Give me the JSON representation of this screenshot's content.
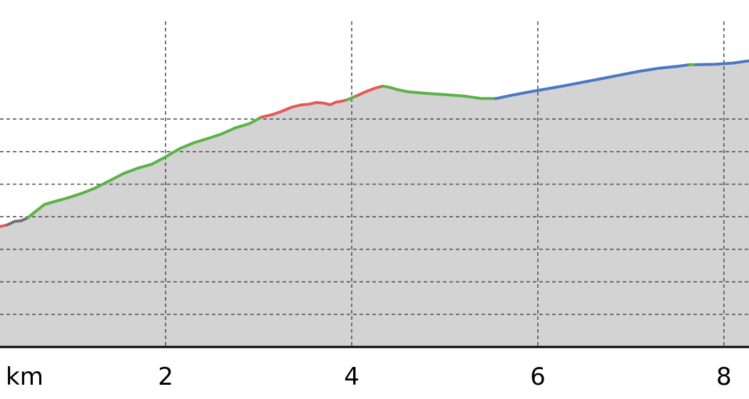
{
  "chart_data": {
    "type": "area",
    "title": "",
    "xlabel": "",
    "ylabel": "",
    "x_unit_label": "km",
    "x_ticks": [
      2,
      4,
      6,
      8
    ],
    "x_tick_labels": [
      "2",
      "4",
      "6",
      "8"
    ],
    "xlim": [
      0.22,
      8.27
    ],
    "ylim": [
      0,
      100
    ],
    "y_gridlines": [
      10,
      20,
      30,
      40,
      50,
      60,
      70
    ],
    "grid": true,
    "legend": "none",
    "colors": {
      "fill": "#d3d3d3",
      "grid": "#555555",
      "axis": "#000000",
      "grade_colors": {
        "gray": "#707070",
        "green": "#5cb247",
        "red": "#e45a5a",
        "blue": "#4a78c2"
      }
    },
    "profile": {
      "x": [
        0.22,
        0.3,
        0.38,
        0.45,
        0.52,
        0.6,
        0.7,
        0.82,
        0.95,
        1.1,
        1.25,
        1.4,
        1.55,
        1.7,
        1.85,
        2.0,
        2.15,
        2.3,
        2.45,
        2.6,
        2.75,
        2.9,
        3.03,
        3.15,
        3.25,
        3.35,
        3.45,
        3.55,
        3.62,
        3.7,
        3.77,
        3.83,
        3.88,
        3.95,
        4.05,
        4.15,
        4.25,
        4.33,
        4.4,
        4.5,
        4.6,
        4.8,
        5.0,
        5.2,
        5.4,
        5.55,
        5.7,
        5.9,
        6.1,
        6.3,
        6.5,
        6.7,
        6.9,
        7.1,
        7.3,
        7.5,
        7.63,
        7.7,
        7.9,
        8.1,
        8.27
      ],
      "y": [
        37.0,
        37.5,
        38.6,
        38.8,
        39.7,
        41.6,
        43.8,
        44.8,
        45.8,
        47.2,
        48.9,
        51.1,
        53.3,
        54.9,
        56.1,
        58.4,
        60.9,
        62.7,
        64.0,
        65.4,
        67.3,
        68.6,
        70.6,
        71.4,
        72.4,
        73.6,
        74.3,
        74.6,
        75.1,
        74.9,
        74.4,
        75.2,
        75.4,
        75.9,
        77.1,
        78.4,
        79.5,
        80.1,
        79.8,
        79.0,
        78.4,
        77.9,
        77.5,
        77.1,
        76.3,
        76.3,
        77.2,
        78.3,
        79.3,
        80.3,
        81.4,
        82.5,
        83.6,
        84.7,
        85.6,
        86.2,
        86.7,
        86.7,
        86.8,
        87.2,
        87.9
      ]
    },
    "segments": [
      {
        "color": "red",
        "from": 0,
        "to": 1
      },
      {
        "color": "gray",
        "from": 1,
        "to": 4
      },
      {
        "color": "green",
        "from": 4,
        "to": 22
      },
      {
        "color": "red",
        "from": 22,
        "to": 33
      },
      {
        "color": "green",
        "from": 33,
        "to": 34
      },
      {
        "color": "red",
        "from": 34,
        "to": 37
      },
      {
        "color": "green",
        "from": 37,
        "to": 45
      },
      {
        "color": "blue",
        "from": 45,
        "to": 56
      },
      {
        "color": "green",
        "from": 56,
        "to": 57
      },
      {
        "color": "blue",
        "from": 57,
        "to": 60
      }
    ]
  }
}
